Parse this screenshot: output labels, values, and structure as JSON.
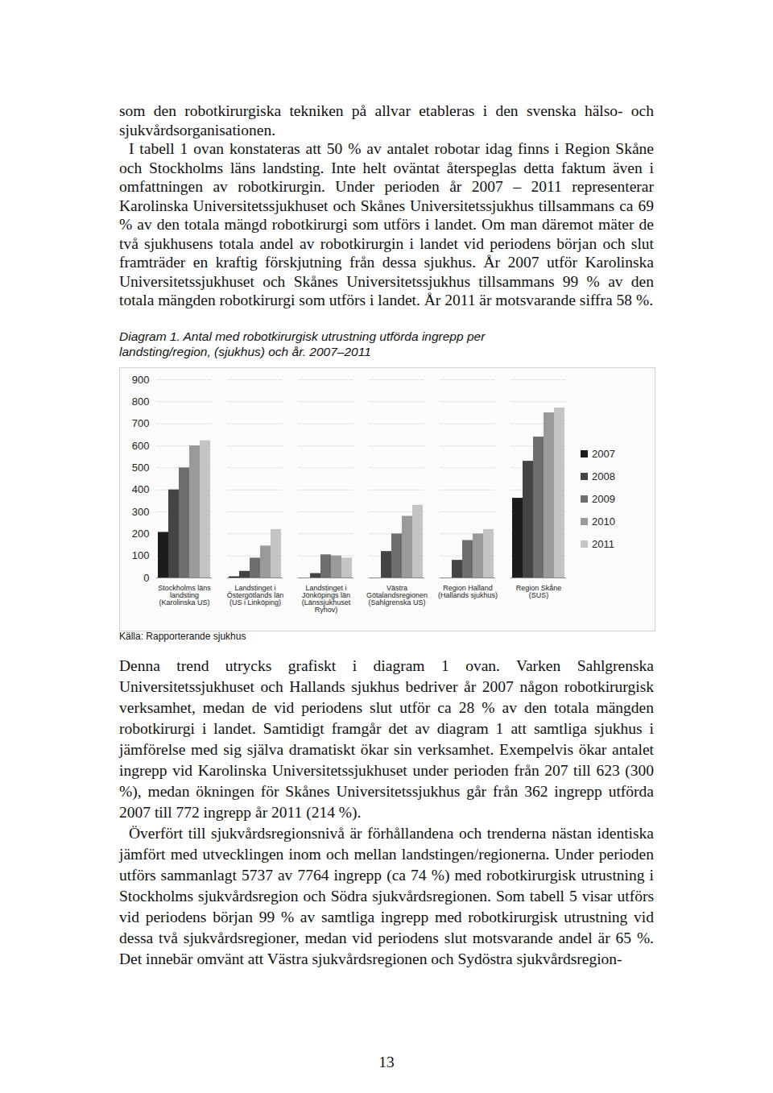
{
  "document": {
    "paragraphs_top": [
      "som den robotkirurgiska tekniken på allvar etableras i den svenska hälso- och sjukvårdsorganisationen.",
      "I tabell 1 ovan konstateras att 50 % av antalet robotar idag finns i Region Skåne och Stockholms läns landsting. Inte helt oväntat återspeglas detta faktum även i omfattningen av robotkirurgin. Under perioden år 2007 – 2011 representerar Karolinska Universitetssjukhuset och Skånes Universitetssjukhus tillsammans ca 69 % av den totala mängd robotkirurgi som utförs i landet. Om man däremot mäter de två sjukhusens totala andel av robotkirurgin i landet vid periodens början och slut framträder en kraftig förskjutning från dessa sjukhus. År 2007 utför Karolinska Universitetssjukhuset och Skånes Universitetssjukhus tillsammans 99 % av den totala mängden robotkirurgi som utförs i landet. År 2011 är motsvarande siffra 58 %."
    ],
    "source": "Källa: Rapporterande sjukhus",
    "paragraphs_bottom": [
      "Denna trend utrycks grafiskt i diagram 1 ovan. Varken Sahlgrenska Universitetssjukhuset och Hallands sjukhus bedriver år 2007 någon robotkirurgisk verksamhet, medan de vid periodens slut utför ca 28 % av den totala mängden robotkirurgi i landet. Samtidigt framgår det av diagram 1 att samtliga sjukhus i jämförelse med sig själva dramatiskt ökar sin verksamhet. Exempelvis ökar antalet ingrepp vid Karolinska Universitetssjukhuset under perioden från 207 till 623 (300 %), medan ökningen för Skånes Universitetssjukhus går från 362 ingrepp utförda 2007 till 772 ingrepp år 2011 (214 %).",
      "Överfört till sjukvårdsregionsnivå är förhållandena och trenderna nästan identiska jämfört med utvecklingen inom och mellan landstingen/regionerna. Under perioden utförs sammanlagt 5737 av 7764 ingrepp (ca 74 %) med robotkirurgisk utrustning i Stockholms sjukvårdsregion och Södra sjukvårdsregionen. Som tabell 5 visar utförs vid periodens början 99 % av samtliga ingrepp med robotkirurgisk utrustning vid dessa två sjukvårdsregioner, medan vid periodens slut motsvarande andel är 65 %. Det innebär omvänt att Västra sjukvårdsregionen och Sydöstra sjukvårdsregion-"
    ],
    "page_number": "13"
  },
  "chart_data": {
    "type": "bar",
    "title": "Diagram 1. Antal med robotkirurgisk utrustning utförda ingrepp per landsting/region, (sjukhus) och år. 2007–2011",
    "categories": [
      "Stockholms läns\nlandsting\n(Karolinska US)",
      "Landstinget i\nÖstergötlands län\n(US i Linköping)",
      "Landstinget i\nJönköpings län\n(Länssjukhuset\nRyhov)",
      "Västra\nGötalandsregionen\n(Sahlgrenska US)",
      "Region Halland\n(Hallands sjukhus)",
      "Region Skåne\n(SUS)"
    ],
    "series": [
      {
        "name": "2007",
        "color": "#1c1c1c",
        "values": [
          207,
          5,
          0,
          0,
          0,
          362
        ]
      },
      {
        "name": "2008",
        "color": "#444444",
        "values": [
          400,
          30,
          20,
          120,
          80,
          530
        ]
      },
      {
        "name": "2009",
        "color": "#6e6e6e",
        "values": [
          500,
          90,
          105,
          200,
          170,
          640
        ]
      },
      {
        "name": "2010",
        "color": "#9a9a9a",
        "values": [
          600,
          145,
          100,
          280,
          200,
          750
        ]
      },
      {
        "name": "2011",
        "color": "#c4c4c4",
        "values": [
          623,
          220,
          90,
          330,
          220,
          772
        ]
      }
    ],
    "ylim": [
      0,
      900
    ],
    "yticks": [
      0,
      100,
      200,
      300,
      400,
      500,
      600,
      700,
      800,
      900
    ],
    "grid": true,
    "legend": "right"
  }
}
